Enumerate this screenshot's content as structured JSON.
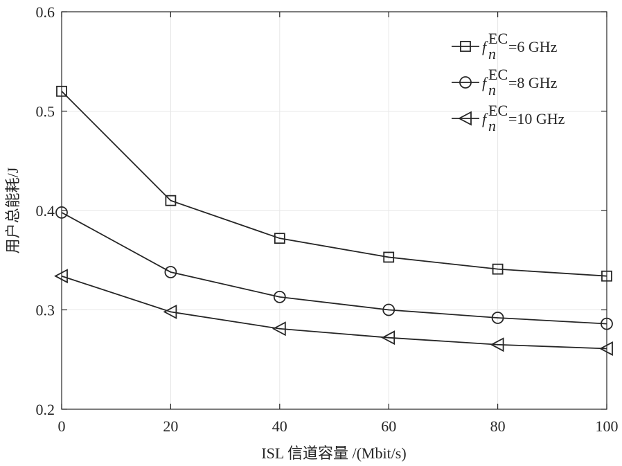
{
  "chart_data": {
    "type": "line",
    "xlabel": "ISL 信道容量 /(Mbit/s)",
    "ylabel": "用户总能耗/J",
    "x": [
      0,
      20,
      40,
      60,
      80,
      100
    ],
    "xlim": [
      0,
      100
    ],
    "ylim": [
      0.2,
      0.6
    ],
    "xticks": [
      "0",
      "20",
      "40",
      "60",
      "80",
      "100"
    ],
    "yticks": [
      "0.2",
      "0.3",
      "0.4",
      "0.5",
      "0.6"
    ],
    "grid": true,
    "legend_position": "top-right",
    "series": [
      {
        "name": "f_n^EC=6 GHz",
        "legend_var": "f",
        "legend_sub": "n",
        "legend_sup": "EC",
        "legend_rest": "=6 GHz",
        "marker": "square",
        "values": [
          0.52,
          0.41,
          0.372,
          0.353,
          0.341,
          0.334
        ]
      },
      {
        "name": "f_n^EC=8 GHz",
        "legend_var": "f",
        "legend_sub": "n",
        "legend_sup": "EC",
        "legend_rest": "=8 GHz",
        "marker": "circle",
        "values": [
          0.398,
          0.338,
          0.313,
          0.3,
          0.292,
          0.286
        ]
      },
      {
        "name": "f_n^EC=10 GHz",
        "legend_var": "f",
        "legend_sub": "n",
        "legend_sup": "EC",
        "legend_rest": "=10 GHz",
        "marker": "triangle-left",
        "values": [
          0.334,
          0.298,
          0.281,
          0.272,
          0.265,
          0.261
        ]
      }
    ],
    "colors": {
      "line": "#262626",
      "grid": "#e6e6e6"
    }
  }
}
